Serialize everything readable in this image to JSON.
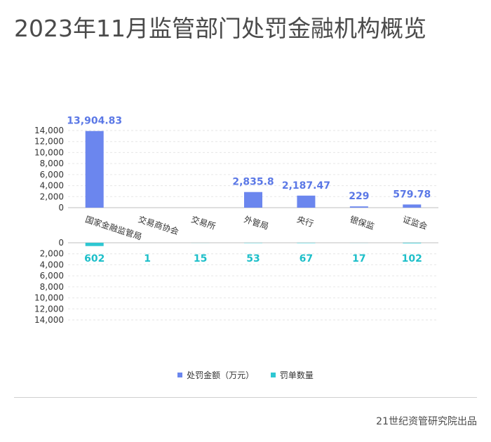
{
  "title": "2023年11月监管部门处罚金融机构概览",
  "credit": "21世纪资管研究院出品",
  "colors": {
    "fine": "#6b86ee",
    "count": "#2ec7d2",
    "label_fine": "#5b78e6",
    "label_count": "#1dbfc9",
    "axis": "#bfbfbf",
    "grid": "#e6e6e6"
  },
  "chart_data": {
    "type": "bar",
    "categories": [
      "国家金融监管局",
      "交易商协会",
      "交易所",
      "外管局",
      "央行",
      "银保监",
      "证监会"
    ],
    "series": [
      {
        "name": "处罚金额（万元）",
        "values": [
          13904.83,
          0,
          0,
          2835.8,
          2187.47,
          229,
          579.78
        ],
        "labels": [
          "13,904.83",
          "",
          "",
          "2,835.8",
          "2,187.47",
          "229",
          "579.78"
        ]
      },
      {
        "name": "罚单数量",
        "values": [
          602,
          1,
          15,
          53,
          67,
          17,
          102
        ],
        "labels": [
          "602",
          "1",
          "15",
          "53",
          "67",
          "17",
          "102"
        ]
      }
    ],
    "ylim": [
      0,
      14000
    ],
    "yticks": [
      "0",
      "2,000",
      "4,000",
      "6,000",
      "8,000",
      "10,000",
      "12,000",
      "14,000"
    ],
    "lower_yticks": [
      "0",
      "2,000",
      "4,000",
      "6,000",
      "8,000",
      "10,000",
      "12,000",
      "14,000"
    ],
    "grid": true,
    "legend_position": "bottom"
  }
}
